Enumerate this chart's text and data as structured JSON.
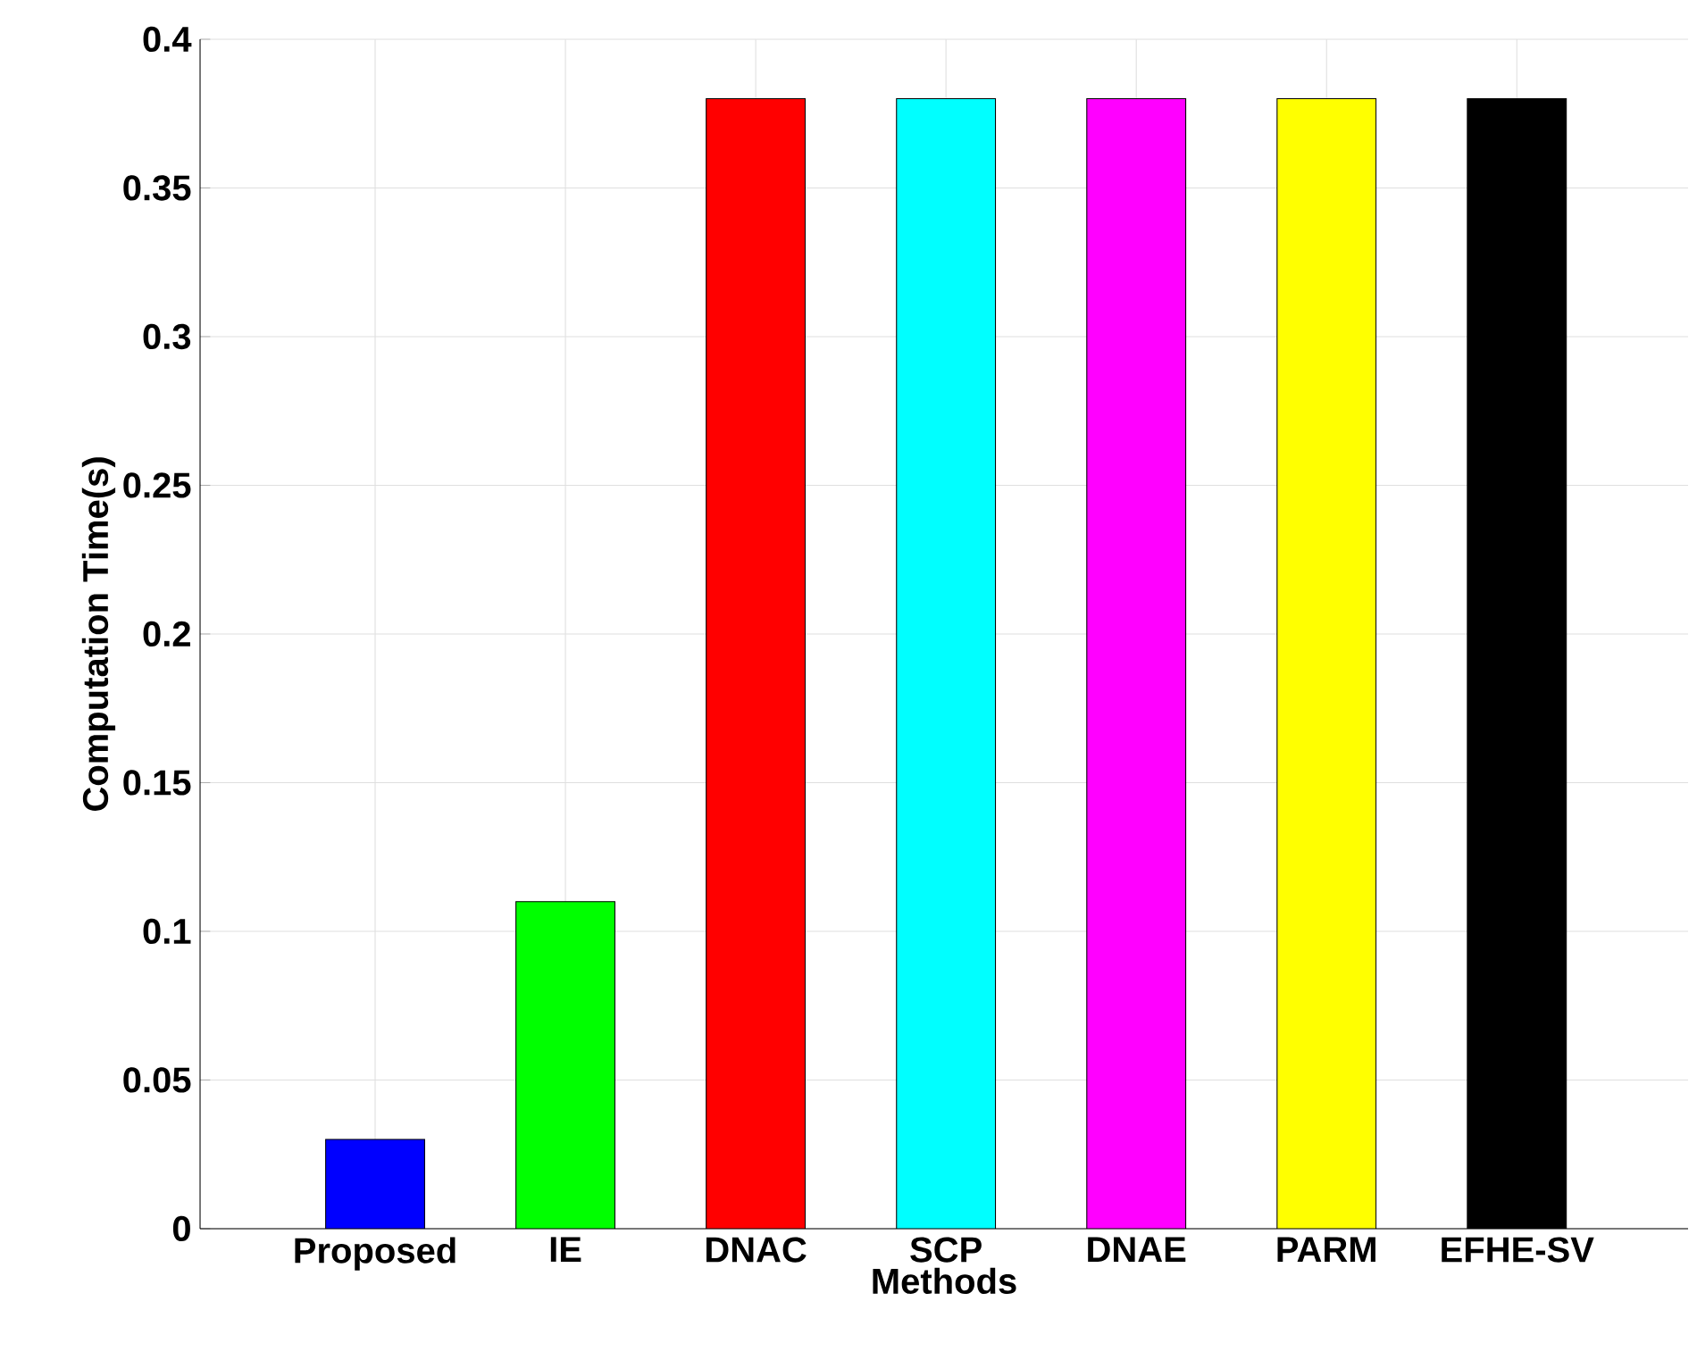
{
  "chart_data": {
    "type": "bar",
    "xlabel": "Methods",
    "ylabel": "Computation Time(s)",
    "categories": [
      "Proposed",
      "IE",
      "DNAC",
      "SCP",
      "DNAE",
      "PARM",
      "EFHE-SV"
    ],
    "values": [
      0.03,
      0.11,
      0.38,
      0.38,
      0.38,
      0.38,
      0.38
    ],
    "colors": [
      "#0000ff",
      "#00ff00",
      "#ff0000",
      "#00ffff",
      "#ff00ff",
      "#ffff00",
      "#000000"
    ],
    "ylim": [
      0,
      0.4
    ],
    "yticks": [
      0,
      0.05,
      0.1,
      0.15,
      0.2,
      0.25,
      0.3,
      0.35,
      0.4
    ],
    "grid": true
  }
}
